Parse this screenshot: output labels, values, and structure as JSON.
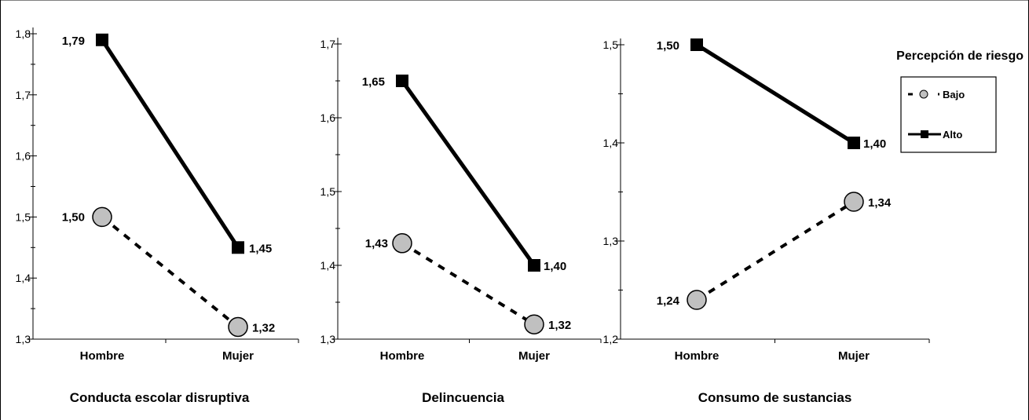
{
  "chart_data": [
    {
      "type": "line",
      "title": "Conducta escolar disruptiva",
      "categories": [
        "Hombre",
        "Mujer"
      ],
      "ylim": [
        1.3,
        1.8
      ],
      "yticks": [
        "1,3",
        "1,4",
        "1,5",
        "1,6",
        "1,7",
        "1,8"
      ],
      "series": [
        {
          "name": "Bajo",
          "values": [
            1.5,
            1.32
          ],
          "labels": [
            "1,50",
            "1,32"
          ]
        },
        {
          "name": "Alto",
          "values": [
            1.79,
            1.45
          ],
          "labels": [
            "1,79",
            "1,45"
          ]
        }
      ]
    },
    {
      "type": "line",
      "title": "Delincuencia",
      "categories": [
        "Hombre",
        "Mujer"
      ],
      "ylim": [
        1.3,
        1.7
      ],
      "yticks": [
        "1,3",
        "1,4",
        "1,5",
        "1,6",
        "1,7"
      ],
      "series": [
        {
          "name": "Bajo",
          "values": [
            1.43,
            1.32
          ],
          "labels": [
            "1,43",
            "1,32"
          ]
        },
        {
          "name": "Alto",
          "values": [
            1.65,
            1.4
          ],
          "labels": [
            "1,65",
            "1,40"
          ]
        }
      ]
    },
    {
      "type": "line",
      "title": "Consumo de sustancias",
      "categories": [
        "Hombre",
        "Mujer"
      ],
      "ylim": [
        1.2,
        1.5
      ],
      "yticks": [
        "1,2",
        "1,3",
        "1,4",
        "1,5"
      ],
      "series": [
        {
          "name": "Bajo",
          "values": [
            1.24,
            1.34
          ],
          "labels": [
            "1,24",
            "1,34"
          ]
        },
        {
          "name": "Alto",
          "values": [
            1.5,
            1.4
          ],
          "labels": [
            "1,50",
            "1,40"
          ]
        }
      ]
    }
  ],
  "legend": {
    "title": "Percepción de riesgo",
    "position": "top-right",
    "items": [
      {
        "name": "Bajo",
        "style": "dashed",
        "marker": "circle",
        "color": "#c0c0c0"
      },
      {
        "name": "Alto",
        "style": "solid",
        "marker": "square",
        "color": "#000000"
      }
    ]
  },
  "colors": {
    "bajo_fill": "#c0c0c0",
    "line": "#000000"
  }
}
